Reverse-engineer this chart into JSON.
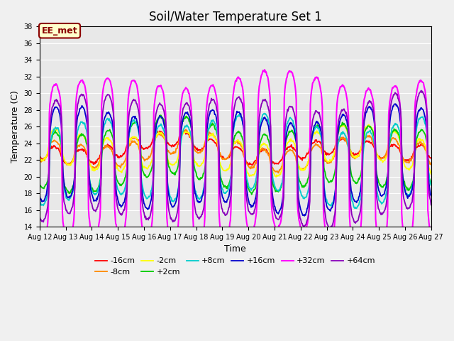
{
  "title": "Soil/Water Temperature Set 1",
  "xlabel": "Time",
  "ylabel": "Temperature (C)",
  "ylim": [
    14,
    38
  ],
  "yticks": [
    14,
    16,
    18,
    20,
    22,
    24,
    26,
    28,
    30,
    32,
    34,
    36,
    38
  ],
  "x_start_day": 12,
  "x_end_day": 27,
  "x_tick_days": [
    12,
    13,
    14,
    15,
    16,
    17,
    18,
    19,
    20,
    21,
    22,
    23,
    24,
    25,
    26,
    27
  ],
  "series_labels": [
    "-16cm",
    "-8cm",
    "-2cm",
    "+2cm",
    "+8cm",
    "+16cm",
    "+32cm",
    "+64cm"
  ],
  "series_colors": [
    "#ff0000",
    "#ff8800",
    "#ffff00",
    "#00cc00",
    "#00cccc",
    "#0000cc",
    "#ff00ff",
    "#8800bb"
  ],
  "series_lw": [
    1.3,
    1.3,
    1.3,
    1.3,
    1.3,
    1.3,
    1.5,
    1.3
  ],
  "annotation_text": "EE_met",
  "plot_bg_color": "#e8e8e8",
  "fig_bg_color": "#f0f0f0",
  "legend_fontsize": 8,
  "title_fontsize": 12,
  "tick_fontsize": 7,
  "axis_label_fontsize": 9
}
